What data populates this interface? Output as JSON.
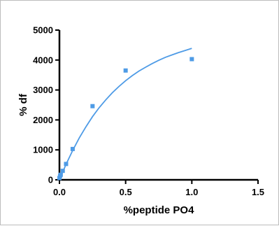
{
  "chart_data": {
    "type": "scatter",
    "title": "",
    "xlabel": "%peptide PO4",
    "ylabel": "% df",
    "xlim": [
      0,
      1.5
    ],
    "ylim": [
      0,
      5000
    ],
    "x_ticks": [
      "0.0",
      "0.5",
      "1.0",
      "1.5"
    ],
    "y_ticks": [
      "0",
      "1000",
      "2000",
      "3000",
      "4000",
      "5000"
    ],
    "grid": false,
    "legend": "none",
    "marker_color": "#4e9be6",
    "line_color": "#4e9be6",
    "series": [
      {
        "points": [
          {
            "x": 0.0,
            "y": 60
          },
          {
            "x": 0.005,
            "y": 130
          },
          {
            "x": 0.01,
            "y": 170
          },
          {
            "x": 0.025,
            "y": 300
          },
          {
            "x": 0.05,
            "y": 530
          },
          {
            "x": 0.1,
            "y": 1030
          },
          {
            "x": 0.25,
            "y": 2460
          },
          {
            "x": 0.5,
            "y": 3650
          },
          {
            "x": 1.0,
            "y": 4030
          }
        ]
      }
    ],
    "fit_curve": {
      "x": [
        0.0,
        0.05,
        0.1,
        0.15,
        0.2,
        0.25,
        0.3,
        0.35,
        0.4,
        0.45,
        0.5,
        0.55,
        0.6,
        0.65,
        0.7,
        0.75,
        0.8,
        0.85,
        0.9,
        0.95,
        1.0
      ],
      "y": [
        0,
        520,
        980,
        1400,
        1770,
        2110,
        2410,
        2670,
        2910,
        3120,
        3310,
        3480,
        3630,
        3760,
        3880,
        3990,
        4090,
        4170,
        4250,
        4320,
        4390
      ]
    }
  }
}
